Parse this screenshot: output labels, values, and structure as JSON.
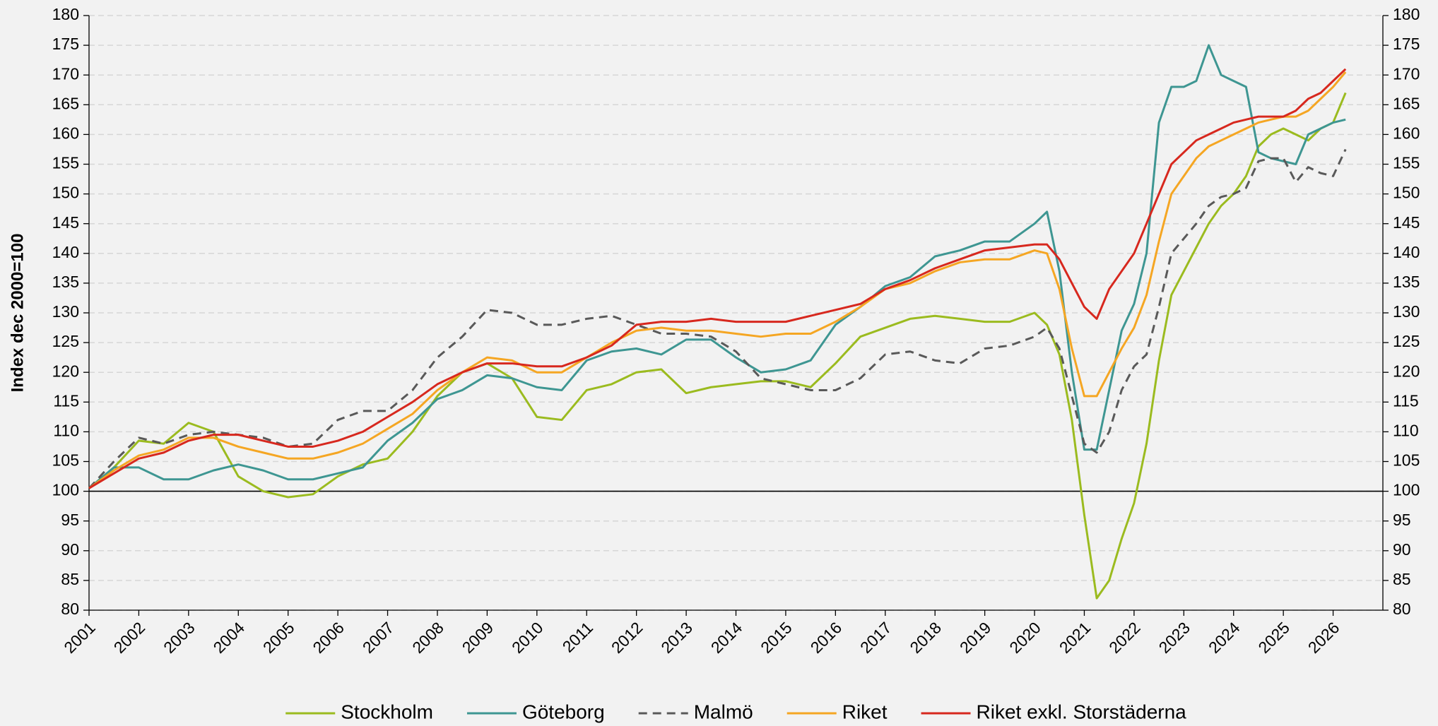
{
  "chart_data": {
    "type": "line",
    "y_label": "Index dec 2000=100",
    "x": [
      2001,
      2001.5,
      2002,
      2002.5,
      2003,
      2003.5,
      2004,
      2004.5,
      2005,
      2005.5,
      2006,
      2006.5,
      2007,
      2007.5,
      2008,
      2008.5,
      2009,
      2009.5,
      2010,
      2010.5,
      2011,
      2011.5,
      2012,
      2012.5,
      2013,
      2013.5,
      2014,
      2014.5,
      2015,
      2015.5,
      2016,
      2016.5,
      2017,
      2017.5,
      2018,
      2018.5,
      2019,
      2019.5,
      2020,
      2020.25,
      2020.5,
      2020.75,
      2021,
      2021.25,
      2021.5,
      2021.75,
      2022,
      2022.25,
      2022.5,
      2022.75,
      2023,
      2023.25,
      2023.5,
      2023.75,
      2024,
      2024.25,
      2024.5,
      2024.75,
      2025,
      2025.25,
      2025.5,
      2025.75,
      2026,
      2026.25
    ],
    "series": [
      {
        "name": "Stockholm",
        "color": "#9bbb1f",
        "style": "solid",
        "values": [
          100.5,
          104,
          108.5,
          108,
          111.5,
          110,
          102.5,
          100,
          99,
          99.5,
          102.5,
          104.5,
          105.5,
          110,
          116,
          120,
          121.5,
          119,
          112.5,
          112,
          117,
          118,
          120,
          120.5,
          116.5,
          117.5,
          118,
          118.5,
          118.5,
          117.5,
          121.5,
          126,
          127.5,
          129,
          129.5,
          129,
          128.5,
          128.5,
          130,
          128,
          123,
          112,
          96,
          82,
          85,
          92,
          98,
          108,
          122,
          133,
          137,
          141,
          145,
          148,
          150,
          153,
          158,
          160,
          161,
          160,
          159,
          161,
          162,
          167
        ]
      },
      {
        "name": "Göteborg",
        "color": "#3e9692",
        "style": "solid",
        "values": [
          100.5,
          104,
          104,
          102,
          102,
          103.5,
          104.5,
          103.5,
          102,
          102,
          103,
          104,
          108.5,
          111.5,
          115.5,
          117,
          119.5,
          119,
          117.5,
          117,
          122,
          123.5,
          124,
          123,
          125.5,
          125.5,
          122.5,
          120,
          120.5,
          122,
          128,
          131,
          134.5,
          136,
          139.5,
          140.5,
          142,
          142,
          145,
          147,
          137,
          120,
          107,
          107,
          117,
          127,
          131.5,
          140,
          162,
          168,
          168,
          169,
          175,
          170,
          169,
          168,
          157,
          156,
          155.5,
          155,
          160,
          161,
          162,
          162.5
        ]
      },
      {
        "name": "Malmö",
        "color": "#595959",
        "style": "dashed",
        "values": [
          100.5,
          105,
          109,
          108,
          109.5,
          110,
          109.5,
          109,
          107.5,
          108,
          112,
          113.5,
          113.5,
          117,
          122.5,
          126,
          130.5,
          130,
          128,
          128,
          129,
          129.5,
          128,
          126.5,
          126.5,
          126,
          123.5,
          119,
          118,
          117,
          117,
          119,
          123,
          123.5,
          122,
          121.5,
          124,
          124.5,
          126,
          127.5,
          124,
          116,
          108,
          106.5,
          110,
          117,
          121,
          123,
          131,
          140,
          142.5,
          145,
          148,
          149.5,
          150,
          151,
          155.5,
          156,
          156,
          152,
          154.5,
          153.5,
          153,
          157.5
        ]
      },
      {
        "name": "Riket",
        "color": "#f5a623",
        "style": "solid",
        "values": [
          100.5,
          103.5,
          106,
          107,
          109,
          109,
          107.5,
          106.5,
          105.5,
          105.5,
          106.5,
          108,
          110.5,
          113,
          117,
          120,
          122.5,
          122,
          120,
          120,
          122.5,
          125,
          127,
          127.5,
          127,
          127,
          126.5,
          126,
          126.5,
          126.5,
          128.5,
          131,
          134,
          135,
          137,
          138.5,
          139,
          139,
          140.5,
          140,
          134,
          124,
          116,
          116,
          120,
          124,
          127.5,
          133,
          142,
          150,
          153,
          156,
          158,
          159,
          160,
          161,
          162,
          162.5,
          163,
          163,
          164,
          166,
          168,
          170.5
        ]
      },
      {
        "name": "Riket exkl. Storstäderna",
        "color": "#d7281e",
        "style": "solid",
        "values": [
          100.5,
          103,
          105.5,
          106.5,
          108.5,
          109.5,
          109.5,
          108.5,
          107.5,
          107.5,
          108.5,
          110,
          112.5,
          115,
          118,
          120,
          121.5,
          121.5,
          121,
          121,
          122.5,
          124.5,
          128,
          128.5,
          128.5,
          129,
          128.5,
          128.5,
          128.5,
          129.5,
          130.5,
          131.5,
          134,
          135.5,
          137.5,
          139,
          140.5,
          141,
          141.5,
          141.5,
          139,
          135,
          131,
          129,
          134,
          137,
          140,
          145,
          150,
          155,
          157,
          159,
          160,
          161,
          162,
          162.5,
          163,
          163,
          163,
          164,
          166,
          167,
          169,
          171
        ]
      }
    ],
    "xlim": [
      2001,
      2027
    ],
    "xticks": [
      2001,
      2002,
      2003,
      2004,
      2005,
      2006,
      2007,
      2008,
      2009,
      2010,
      2011,
      2012,
      2013,
      2014,
      2015,
      2016,
      2017,
      2018,
      2019,
      2020,
      2021,
      2022,
      2023,
      2024,
      2025,
      2026
    ],
    "ylim": [
      80,
      180
    ],
    "yticks": [
      80,
      85,
      90,
      95,
      100,
      105,
      110,
      115,
      120,
      125,
      130,
      135,
      140,
      145,
      150,
      155,
      160,
      165,
      170,
      175,
      180
    ],
    "y2lim": [
      80,
      180
    ],
    "y2ticks": [
      80,
      85,
      90,
      95,
      100,
      105,
      110,
      115,
      120,
      125,
      130,
      135,
      140,
      145,
      150,
      155,
      160,
      165,
      170,
      175,
      180
    ],
    "reference_line": 100,
    "grid": true,
    "legend": "bottom"
  }
}
